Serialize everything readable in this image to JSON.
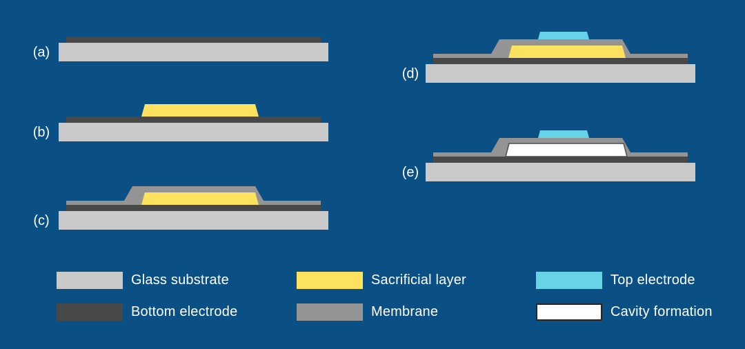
{
  "colors": {
    "background": "#0a5084",
    "glass": "#c9c9c9",
    "bottom_electrode": "#484848",
    "sacrificial": "#fce25f",
    "membrane": "#949494",
    "top_electrode": "#66d3e6",
    "cavity": "#ffffff",
    "cavity_outline": "#4d4d4d",
    "legend_cavity_border": "#262626",
    "text": "#ffffff"
  },
  "steps": [
    {
      "id": "a",
      "label": "(a)",
      "layers": [
        "glass",
        "bottom_electrode"
      ]
    },
    {
      "id": "b",
      "label": "(b)",
      "layers": [
        "glass",
        "bottom_electrode",
        "sacrificial"
      ]
    },
    {
      "id": "c",
      "label": "(c)",
      "layers": [
        "glass",
        "bottom_electrode",
        "membrane",
        "sacrificial"
      ]
    },
    {
      "id": "d",
      "label": "(d)",
      "layers": [
        "glass",
        "bottom_electrode",
        "membrane",
        "sacrificial",
        "top_electrode"
      ]
    },
    {
      "id": "e",
      "label": "(e)",
      "layers": [
        "glass",
        "bottom_electrode",
        "membrane",
        "cavity",
        "top_electrode"
      ]
    }
  ],
  "legend": {
    "items": [
      {
        "key": "glass",
        "label": "Glass substrate"
      },
      {
        "key": "bottom_electrode",
        "label": "Bottom electrode"
      },
      {
        "key": "sacrificial",
        "label": "Sacrificial layer"
      },
      {
        "key": "membrane",
        "label": "Membrane"
      },
      {
        "key": "top_electrode",
        "label": "Top electrode"
      },
      {
        "key": "cavity",
        "label": "Cavity formation"
      }
    ]
  }
}
